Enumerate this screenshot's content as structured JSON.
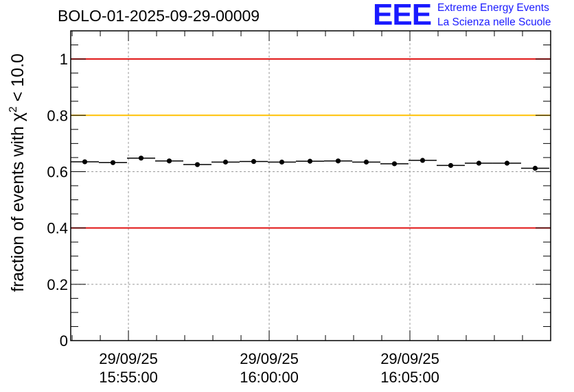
{
  "chart_data": {
    "type": "scatter",
    "title": "BOLO-01-2025-09-29-00009",
    "ylabel_main": "fraction of events with χ",
    "ylabel_sup": "2",
    "ylabel_tail": " < 10.0",
    "xlabel": "",
    "ylim": [
      0,
      1.1
    ],
    "yticks": [
      0,
      0.2,
      0.4,
      0.6,
      0.8,
      1
    ],
    "ytick_labels": [
      "0",
      "0.2",
      "0.4",
      "0.6",
      "0.8",
      "1"
    ],
    "x_range_minutes": [
      -7.05,
      10.0
    ],
    "xticks": [
      {
        "minute": -5,
        "date": "29/09/25",
        "time": "15:55:00"
      },
      {
        "minute": 0,
        "date": "29/09/25",
        "time": "16:00:00"
      },
      {
        "minute": 5,
        "date": "29/09/25",
        "time": "16:05:00"
      }
    ],
    "bin_width_minutes": 1.0,
    "series": [
      {
        "name": "fraction",
        "x_minutes": [
          -6.55,
          -5.55,
          -4.55,
          -3.55,
          -2.55,
          -1.55,
          -0.55,
          0.45,
          1.45,
          2.45,
          3.45,
          4.45,
          5.45,
          6.45,
          7.45,
          8.45,
          9.45
        ],
        "values": [
          0.635,
          0.632,
          0.648,
          0.638,
          0.625,
          0.634,
          0.636,
          0.634,
          0.637,
          0.638,
          0.634,
          0.628,
          0.64,
          0.622,
          0.63,
          0.63,
          0.612
        ]
      }
    ],
    "reference_lines": [
      {
        "y": 1.0,
        "color": "#e01010"
      },
      {
        "y": 0.8,
        "color": "#ffc000"
      },
      {
        "y": 0.4,
        "color": "#e01010"
      }
    ]
  },
  "logo": {
    "mark": "EEE",
    "line1": "Extreme Energy Events",
    "line2": "La Scienza nelle Scuole"
  }
}
